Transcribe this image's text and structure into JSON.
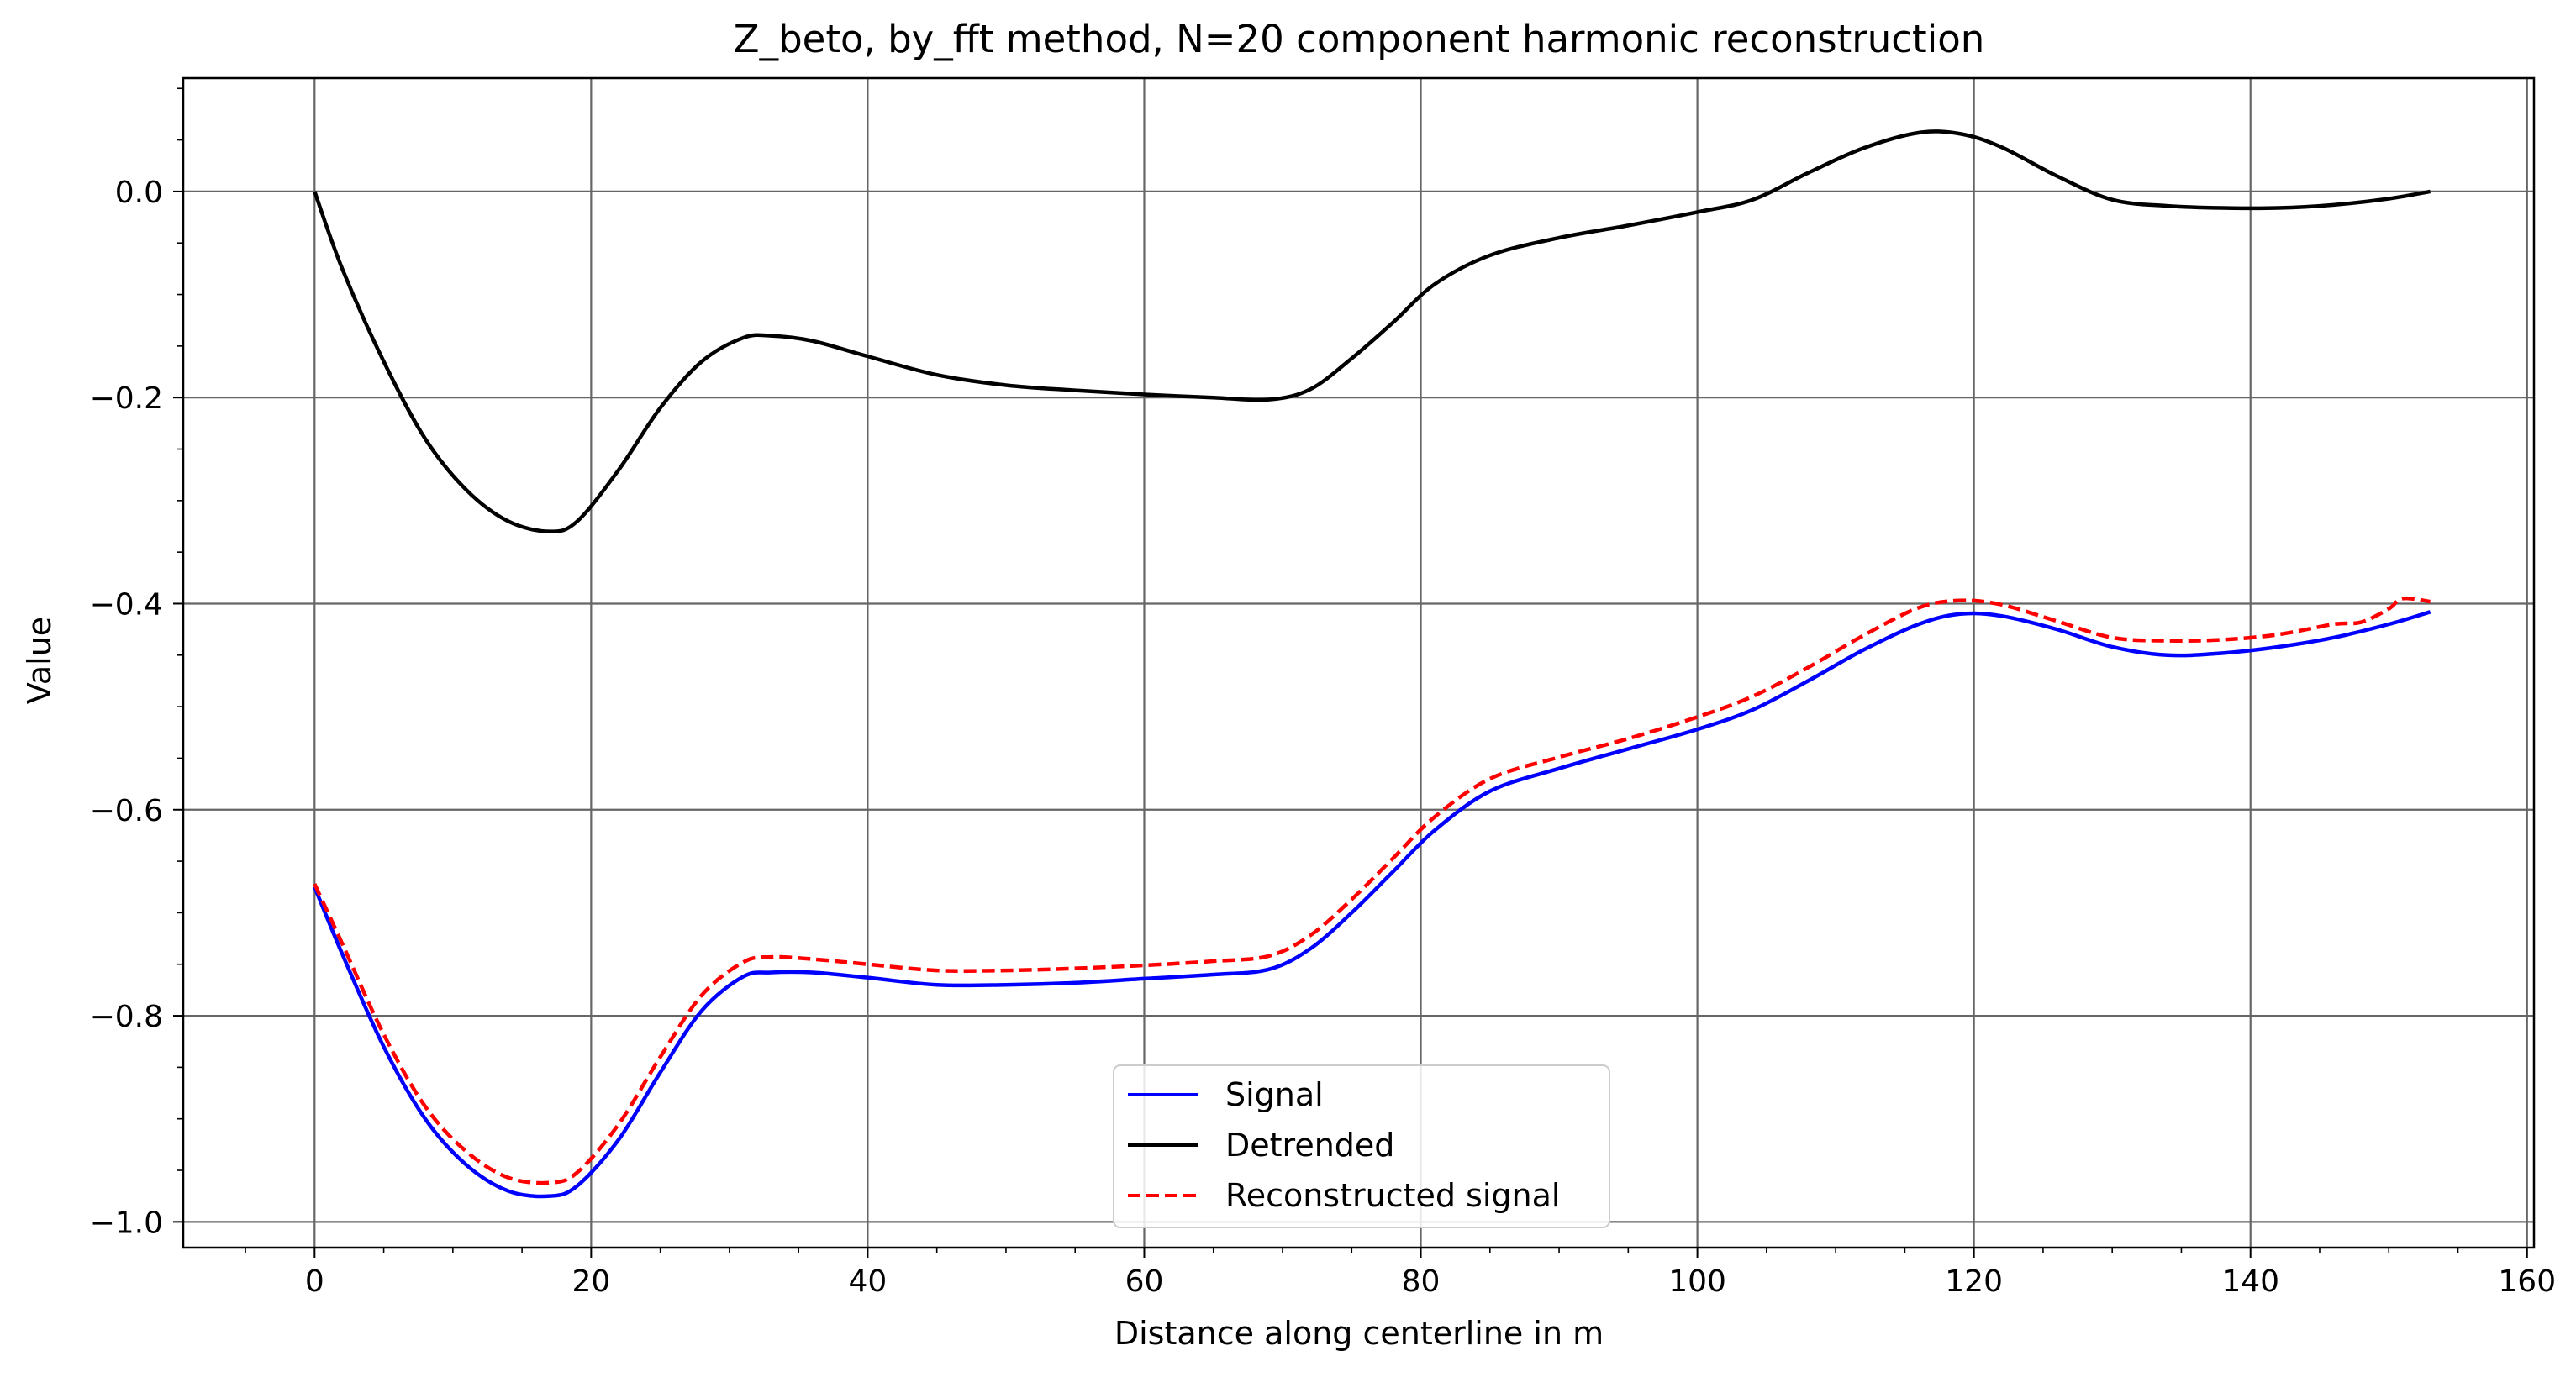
{
  "chart_data": {
    "type": "line",
    "title": "Z_beto, by_fft method, N=20 component harmonic reconstruction",
    "xlabel": "Distance along centerline in m",
    "ylabel": "Value",
    "xlim": [
      -9.5,
      160.5
    ],
    "ylim": [
      -1.025,
      0.11
    ],
    "xticks": [
      0,
      20,
      40,
      60,
      80,
      100,
      120,
      140,
      160
    ],
    "yticks": [
      0.0,
      -0.2,
      -0.4,
      -0.6,
      -0.8,
      -1.0
    ],
    "xtick_labels": [
      "0",
      "20",
      "40",
      "60",
      "80",
      "100",
      "120",
      "140",
      "160"
    ],
    "ytick_labels": [
      "0.0",
      "−0.2",
      "−0.4",
      "−0.6",
      "−0.8",
      "−1.0"
    ],
    "grid": true,
    "legend_position": "lower center",
    "series": [
      {
        "name": "Signal",
        "color": "#0000ff",
        "dash": "solid",
        "x": [
          0,
          2,
          5,
          8,
          11,
          14,
          17,
          19,
          22,
          25,
          28,
          31,
          33,
          36,
          40,
          45,
          50,
          55,
          60,
          65,
          69,
          72,
          75,
          78,
          81,
          85,
          90,
          95,
          100,
          104,
          108,
          112,
          116,
          119,
          122,
          126,
          130,
          134,
          138,
          142,
          146,
          150,
          153
        ],
        "y": [
          -0.675,
          -0.74,
          -0.83,
          -0.9,
          -0.945,
          -0.97,
          -0.975,
          -0.965,
          -0.92,
          -0.855,
          -0.795,
          -0.762,
          -0.758,
          -0.758,
          -0.763,
          -0.77,
          -0.77,
          -0.768,
          -0.764,
          -0.76,
          -0.755,
          -0.735,
          -0.7,
          -0.66,
          -0.62,
          -0.582,
          -0.56,
          -0.541,
          -0.522,
          -0.503,
          -0.475,
          -0.445,
          -0.42,
          -0.41,
          -0.412,
          -0.425,
          -0.442,
          -0.45,
          -0.448,
          -0.442,
          -0.433,
          -0.42,
          -0.408
        ]
      },
      {
        "name": "Detrended",
        "color": "#000000",
        "dash": "solid",
        "x": [
          0,
          2,
          5,
          8,
          11,
          14,
          17,
          19,
          22,
          25,
          28,
          31,
          33,
          36,
          40,
          45,
          50,
          55,
          60,
          65,
          69,
          72,
          75,
          78,
          81,
          85,
          90,
          95,
          100,
          104,
          108,
          112,
          116,
          119,
          122,
          126,
          130,
          134,
          138,
          142,
          146,
          150,
          153
        ],
        "y": [
          0.0,
          -0.075,
          -0.165,
          -0.24,
          -0.29,
          -0.32,
          -0.33,
          -0.32,
          -0.27,
          -0.21,
          -0.165,
          -0.142,
          -0.14,
          -0.145,
          -0.16,
          -0.178,
          -0.188,
          -0.193,
          -0.197,
          -0.2,
          -0.202,
          -0.192,
          -0.162,
          -0.127,
          -0.09,
          -0.062,
          -0.045,
          -0.033,
          -0.02,
          -0.008,
          0.018,
          0.042,
          0.057,
          0.056,
          0.043,
          0.015,
          -0.008,
          -0.014,
          -0.016,
          -0.016,
          -0.013,
          -0.007,
          0.0
        ]
      },
      {
        "name": "Reconstructed signal",
        "color": "#ff0000",
        "dash": "dashed",
        "x": [
          0,
          2,
          5,
          8,
          11,
          14,
          17,
          19,
          22,
          25,
          28,
          31,
          33,
          36,
          40,
          45,
          50,
          55,
          60,
          65,
          69,
          72,
          75,
          78,
          81,
          85,
          90,
          95,
          100,
          104,
          108,
          112,
          116,
          119,
          122,
          126,
          130,
          134,
          138,
          142,
          146,
          148,
          150,
          151,
          153
        ],
        "y": [
          -0.672,
          -0.73,
          -0.818,
          -0.888,
          -0.932,
          -0.957,
          -0.962,
          -0.952,
          -0.905,
          -0.84,
          -0.78,
          -0.748,
          -0.743,
          -0.745,
          -0.75,
          -0.756,
          -0.756,
          -0.754,
          -0.751,
          -0.747,
          -0.742,
          -0.722,
          -0.687,
          -0.647,
          -0.607,
          -0.57,
          -0.549,
          -0.531,
          -0.51,
          -0.49,
          -0.462,
          -0.431,
          -0.404,
          -0.397,
          -0.401,
          -0.417,
          -0.433,
          -0.436,
          -0.435,
          -0.43,
          -0.42,
          -0.418,
          -0.405,
          -0.395,
          -0.398
        ]
      }
    ]
  }
}
